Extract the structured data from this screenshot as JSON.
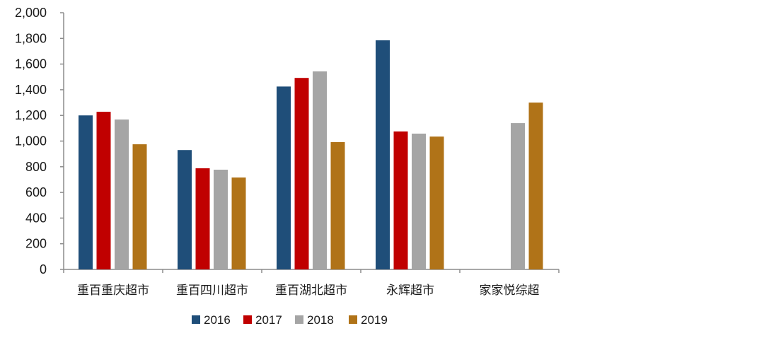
{
  "chart_data": {
    "type": "bar",
    "title": "",
    "xlabel": "",
    "ylabel": "",
    "ylim": [
      0,
      2000
    ],
    "yticks": [
      0,
      200,
      400,
      600,
      800,
      1000,
      1200,
      1400,
      1600,
      1800,
      2000
    ],
    "ytick_labels": [
      "0",
      "200",
      "400",
      "600",
      "800",
      "1,000",
      "1,200",
      "1,400",
      "1,600",
      "1,800",
      "2,000"
    ],
    "grid": false,
    "legend_position": "bottom",
    "categories": [
      "重百重庆超市",
      "重百四川超市",
      "重百湖北超市",
      "永辉超市",
      "家家悦综超"
    ],
    "series": [
      {
        "name": "2016",
        "color": "#1F4E79",
        "values": [
          1200,
          930,
          1425,
          1785,
          null
        ]
      },
      {
        "name": "2017",
        "color": "#C00000",
        "values": [
          1228,
          788,
          1492,
          1075,
          null
        ]
      },
      {
        "name": "2018",
        "color": "#A5A5A5",
        "values": [
          1168,
          777,
          1543,
          1058,
          1140
        ]
      },
      {
        "name": "2019",
        "color": "#B07318",
        "values": [
          975,
          716,
          992,
          1035,
          1300
        ]
      }
    ]
  }
}
